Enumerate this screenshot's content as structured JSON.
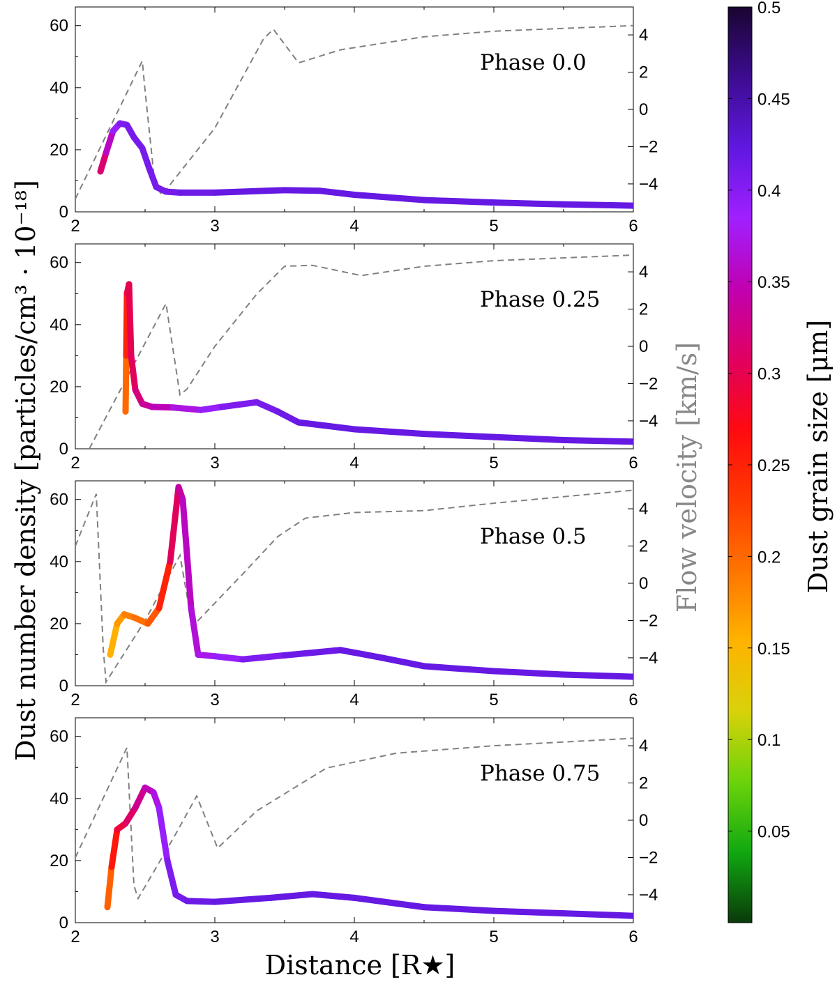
{
  "chart_data": {
    "type": "line",
    "xlabel": "Distance [R★]",
    "ylabel": "Dust number density [particles/cm³ · 10⁻¹⁸]",
    "ylabel_right": "Flow velocity [km/s]",
    "colorbar_label": "Dust grain size [μm]",
    "xlim": [
      2,
      6
    ],
    "ylim": [
      0,
      66
    ],
    "ylim_right": [
      -5.5,
      5.5
    ],
    "x_ticks": [
      "2",
      "3",
      "4",
      "5",
      "6"
    ],
    "y_ticks": [
      "0",
      "20",
      "40",
      "60"
    ],
    "y_right_ticks": [
      "−4",
      "−2",
      "0",
      "2",
      "4"
    ],
    "colorbar": {
      "range": [
        0,
        0.5
      ],
      "ticks": [
        "0.05",
        "0.1",
        "0.15",
        "0.2",
        "0.25",
        "0.3",
        "0.35",
        "0.4",
        "0.45",
        "0.5"
      ],
      "colors": [
        "#0a3a0a",
        "#11a811",
        "#6cd30a",
        "#d8d20a",
        "#ffb300",
        "#ff7400",
        "#ff3a00",
        "#ff0a10",
        "#e00060",
        "#c000b0",
        "#a020ff",
        "#6018e0",
        "#3c0c90",
        "#1a0530"
      ]
    },
    "panels": [
      {
        "label": "Phase 0.0",
        "density": [
          {
            "x": 2.18,
            "y": 13,
            "size": 0.3
          },
          {
            "x": 2.22,
            "y": 19,
            "size": 0.33
          },
          {
            "x": 2.27,
            "y": 26,
            "size": 0.38
          },
          {
            "x": 2.32,
            "y": 28.5,
            "size": 0.4
          },
          {
            "x": 2.37,
            "y": 28,
            "size": 0.41
          },
          {
            "x": 2.42,
            "y": 24,
            "size": 0.41
          },
          {
            "x": 2.48,
            "y": 20.5,
            "size": 0.41
          },
          {
            "x": 2.53,
            "y": 14,
            "size": 0.41
          },
          {
            "x": 2.58,
            "y": 8,
            "size": 0.41
          },
          {
            "x": 2.65,
            "y": 6.5,
            "size": 0.41
          },
          {
            "x": 2.75,
            "y": 6.2,
            "size": 0.41
          },
          {
            "x": 3.0,
            "y": 6.2,
            "size": 0.42
          },
          {
            "x": 3.5,
            "y": 7,
            "size": 0.42
          },
          {
            "x": 3.75,
            "y": 6.8,
            "size": 0.42
          },
          {
            "x": 4.0,
            "y": 5.5,
            "size": 0.42
          },
          {
            "x": 4.5,
            "y": 3.8,
            "size": 0.42
          },
          {
            "x": 5.0,
            "y": 3.0,
            "size": 0.42
          },
          {
            "x": 5.5,
            "y": 2.4,
            "size": 0.42
          },
          {
            "x": 6.0,
            "y": 2.0,
            "size": 0.42
          }
        ],
        "velocity": [
          {
            "x": 2.0,
            "y": -4.8
          },
          {
            "x": 2.48,
            "y": 2.6
          },
          {
            "x": 2.5,
            "y": 1.0
          },
          {
            "x": 2.57,
            "y": -4.0
          },
          {
            "x": 2.62,
            "y": -4.6
          },
          {
            "x": 3.0,
            "y": -1.0
          },
          {
            "x": 3.35,
            "y": 3.8
          },
          {
            "x": 3.42,
            "y": 4.3
          },
          {
            "x": 3.6,
            "y": 2.5
          },
          {
            "x": 3.9,
            "y": 3.2
          },
          {
            "x": 4.5,
            "y": 3.9
          },
          {
            "x": 5.0,
            "y": 4.2
          },
          {
            "x": 6.0,
            "y": 4.5
          }
        ]
      },
      {
        "label": "Phase 0.25",
        "density": [
          {
            "x": 2.36,
            "y": 12,
            "size": 0.18
          },
          {
            "x": 2.365,
            "y": 30,
            "size": 0.22
          },
          {
            "x": 2.37,
            "y": 50,
            "size": 0.28
          },
          {
            "x": 2.385,
            "y": 53,
            "size": 0.3
          },
          {
            "x": 2.4,
            "y": 30,
            "size": 0.3
          },
          {
            "x": 2.43,
            "y": 19,
            "size": 0.31
          },
          {
            "x": 2.48,
            "y": 14.5,
            "size": 0.33
          },
          {
            "x": 2.55,
            "y": 13.5,
            "size": 0.34
          },
          {
            "x": 2.7,
            "y": 13.3,
            "size": 0.36
          },
          {
            "x": 2.9,
            "y": 12.5,
            "size": 0.38
          },
          {
            "x": 3.05,
            "y": 13.5,
            "size": 0.4
          },
          {
            "x": 3.3,
            "y": 15,
            "size": 0.41
          },
          {
            "x": 3.45,
            "y": 12,
            "size": 0.41
          },
          {
            "x": 3.6,
            "y": 8.5,
            "size": 0.42
          },
          {
            "x": 4.0,
            "y": 6.3,
            "size": 0.42
          },
          {
            "x": 4.5,
            "y": 4.8,
            "size": 0.42
          },
          {
            "x": 5.0,
            "y": 3.8,
            "size": 0.42
          },
          {
            "x": 5.5,
            "y": 2.8,
            "size": 0.42
          },
          {
            "x": 6.0,
            "y": 2.3,
            "size": 0.42
          }
        ],
        "velocity": [
          {
            "x": 2.1,
            "y": -5.5
          },
          {
            "x": 2.65,
            "y": 2.3
          },
          {
            "x": 2.75,
            "y": -2.6
          },
          {
            "x": 2.8,
            "y": -2.3
          },
          {
            "x": 3.0,
            "y": 0.0
          },
          {
            "x": 3.3,
            "y": 2.8
          },
          {
            "x": 3.5,
            "y": 4.3
          },
          {
            "x": 3.7,
            "y": 4.35
          },
          {
            "x": 4.05,
            "y": 3.8
          },
          {
            "x": 4.5,
            "y": 4.3
          },
          {
            "x": 5.0,
            "y": 4.6
          },
          {
            "x": 6.0,
            "y": 4.9
          }
        ]
      },
      {
        "label": "Phase 0.5",
        "density": [
          {
            "x": 2.25,
            "y": 10,
            "size": 0.15
          },
          {
            "x": 2.3,
            "y": 20,
            "size": 0.16
          },
          {
            "x": 2.35,
            "y": 23,
            "size": 0.18
          },
          {
            "x": 2.42,
            "y": 22,
            "size": 0.19
          },
          {
            "x": 2.52,
            "y": 20,
            "size": 0.2
          },
          {
            "x": 2.6,
            "y": 25,
            "size": 0.22
          },
          {
            "x": 2.68,
            "y": 40,
            "size": 0.28
          },
          {
            "x": 2.74,
            "y": 64,
            "size": 0.33
          },
          {
            "x": 2.77,
            "y": 60,
            "size": 0.35
          },
          {
            "x": 2.83,
            "y": 25,
            "size": 0.36
          },
          {
            "x": 2.88,
            "y": 10,
            "size": 0.37
          },
          {
            "x": 3.0,
            "y": 9.5,
            "size": 0.38
          },
          {
            "x": 3.2,
            "y": 8.5,
            "size": 0.4
          },
          {
            "x": 3.5,
            "y": 9.8,
            "size": 0.41
          },
          {
            "x": 3.9,
            "y": 11.5,
            "size": 0.42
          },
          {
            "x": 4.2,
            "y": 9.0,
            "size": 0.42
          },
          {
            "x": 4.5,
            "y": 6.3,
            "size": 0.42
          },
          {
            "x": 5.0,
            "y": 4.7,
            "size": 0.42
          },
          {
            "x": 5.5,
            "y": 3.6,
            "size": 0.42
          },
          {
            "x": 6.0,
            "y": 2.9,
            "size": 0.42
          }
        ],
        "velocity": [
          {
            "x": 2.0,
            "y": 2.0
          },
          {
            "x": 2.15,
            "y": 4.8
          },
          {
            "x": 2.2,
            "y": -3.5
          },
          {
            "x": 2.22,
            "y": -5.3
          },
          {
            "x": 2.5,
            "y": -2.0
          },
          {
            "x": 2.75,
            "y": 1.5
          },
          {
            "x": 2.82,
            "y": -1.5
          },
          {
            "x": 2.88,
            "y": -2.0
          },
          {
            "x": 3.2,
            "y": 0.5
          },
          {
            "x": 3.45,
            "y": 2.5
          },
          {
            "x": 3.65,
            "y": 3.5
          },
          {
            "x": 4.0,
            "y": 3.8
          },
          {
            "x": 4.5,
            "y": 3.9
          },
          {
            "x": 5.0,
            "y": 4.3
          },
          {
            "x": 6.0,
            "y": 5.0
          }
        ]
      },
      {
        "label": "Phase 0.75",
        "density": [
          {
            "x": 2.23,
            "y": 5,
            "size": 0.17
          },
          {
            "x": 2.26,
            "y": 18,
            "size": 0.24
          },
          {
            "x": 2.3,
            "y": 30,
            "size": 0.28
          },
          {
            "x": 2.36,
            "y": 32,
            "size": 0.3
          },
          {
            "x": 2.43,
            "y": 37,
            "size": 0.32
          },
          {
            "x": 2.5,
            "y": 43.5,
            "size": 0.34
          },
          {
            "x": 2.56,
            "y": 42,
            "size": 0.36
          },
          {
            "x": 2.6,
            "y": 37,
            "size": 0.38
          },
          {
            "x": 2.66,
            "y": 20,
            "size": 0.4
          },
          {
            "x": 2.72,
            "y": 9,
            "size": 0.41
          },
          {
            "x": 2.8,
            "y": 7,
            "size": 0.41
          },
          {
            "x": 3.0,
            "y": 6.7,
            "size": 0.42
          },
          {
            "x": 3.4,
            "y": 8,
            "size": 0.42
          },
          {
            "x": 3.7,
            "y": 9.2,
            "size": 0.42
          },
          {
            "x": 4.0,
            "y": 8,
            "size": 0.42
          },
          {
            "x": 4.5,
            "y": 5.0,
            "size": 0.42
          },
          {
            "x": 5.0,
            "y": 3.8,
            "size": 0.42
          },
          {
            "x": 5.5,
            "y": 3.0,
            "size": 0.42
          },
          {
            "x": 6.0,
            "y": 2.2,
            "size": 0.42
          }
        ],
        "velocity": [
          {
            "x": 2.0,
            "y": -2.0
          },
          {
            "x": 2.37,
            "y": 3.9
          },
          {
            "x": 2.42,
            "y": -3.5
          },
          {
            "x": 2.45,
            "y": -4.2
          },
          {
            "x": 2.7,
            "y": -1.0
          },
          {
            "x": 2.87,
            "y": 1.3
          },
          {
            "x": 3.02,
            "y": -1.5
          },
          {
            "x": 3.3,
            "y": 0.5
          },
          {
            "x": 3.8,
            "y": 2.8
          },
          {
            "x": 4.3,
            "y": 3.6
          },
          {
            "x": 5.0,
            "y": 4.0
          },
          {
            "x": 6.0,
            "y": 4.4
          }
        ]
      }
    ]
  }
}
